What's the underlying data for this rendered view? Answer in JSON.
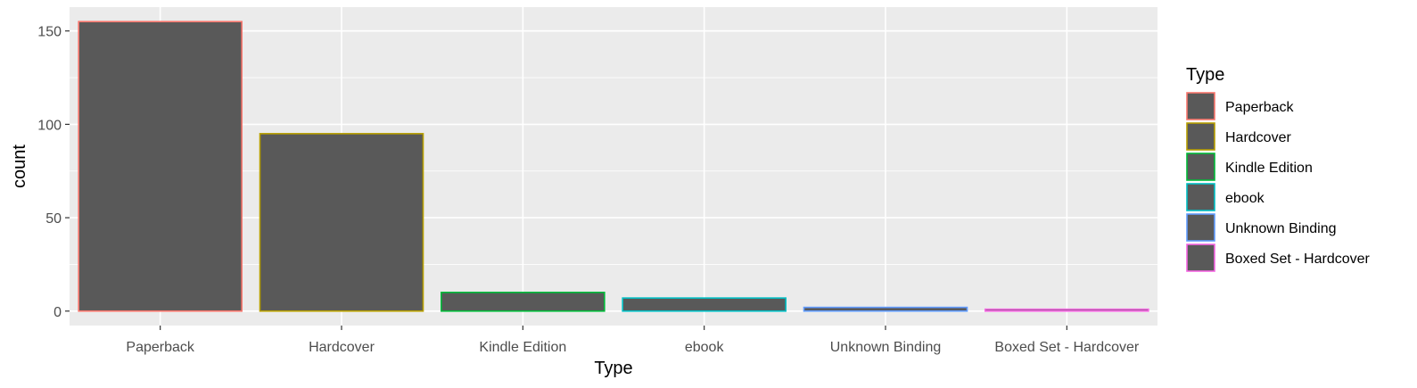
{
  "chart_data": {
    "type": "bar",
    "xlabel": "Type",
    "ylabel": "count",
    "categories": [
      "Paperback",
      "Hardcover",
      "Kindle Edition",
      "ebook",
      "Unknown Binding",
      "Boxed Set - Hardcover"
    ],
    "values": [
      155,
      95,
      10,
      7,
      2,
      1
    ],
    "ylim": [
      -7.75,
      162.75
    ],
    "yticks": [
      0,
      50,
      100,
      150
    ],
    "grid": true,
    "bar_fill": "#595959",
    "outline_colors": [
      "#F8766D",
      "#B79F00",
      "#00BA38",
      "#00BFC4",
      "#619CFF",
      "#F564E3"
    ],
    "panel_background": "#EBEBEB",
    "gridline_color": "#FFFFFF",
    "legend": {
      "title": "Type",
      "position": "right",
      "entries": [
        "Paperback",
        "Hardcover",
        "Kindle Edition",
        "ebook",
        "Unknown Binding",
        "Boxed Set - Hardcover"
      ]
    }
  }
}
